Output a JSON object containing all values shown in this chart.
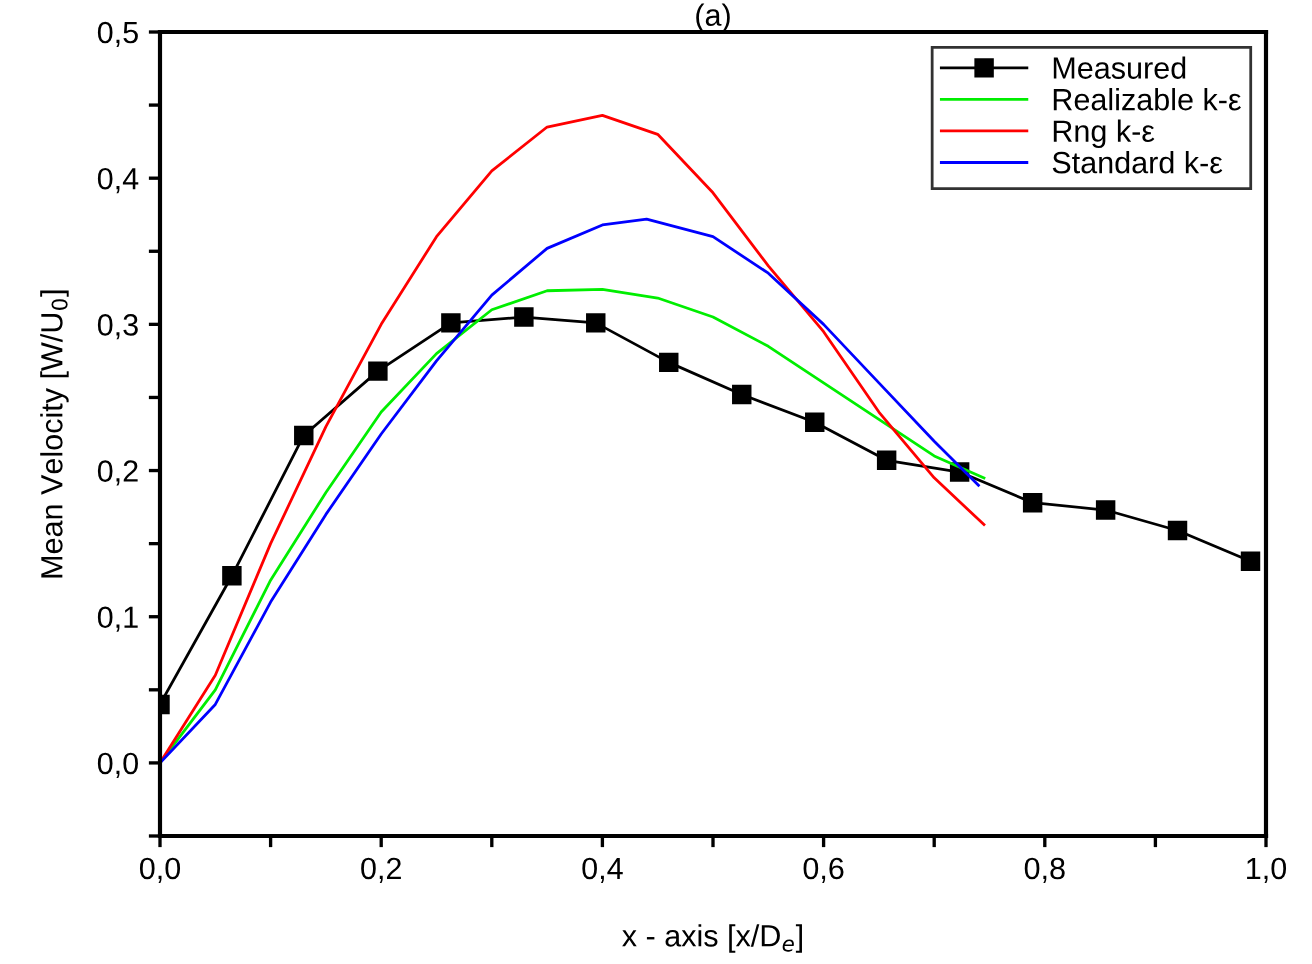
{
  "chart_data": {
    "type": "line",
    "title": "(a)",
    "xlabel": "x - axis [x/D$_{e}$]",
    "ylabel": "Mean Velocity [W/U$_{0}$]",
    "xlim": [
      0,
      1.0
    ],
    "ylim": [
      -0.05,
      0.5
    ],
    "xticks": [
      {
        "value": 0,
        "label": "0,0"
      },
      {
        "value": 0.1,
        "label": null
      },
      {
        "value": 0.2,
        "label": "0,2"
      },
      {
        "value": 0.3,
        "label": null
      },
      {
        "value": 0.4,
        "label": "0,4"
      },
      {
        "value": 0.5,
        "label": null
      },
      {
        "value": 0.6,
        "label": "0,6"
      },
      {
        "value": 0.7,
        "label": null
      },
      {
        "value": 0.8,
        "label": "0,8"
      },
      {
        "value": 0.9,
        "label": null
      },
      {
        "value": 1.0,
        "label": "1,0"
      }
    ],
    "yticks": [
      {
        "value": -0.05,
        "label": null
      },
      {
        "value": 0,
        "label": "0,0"
      },
      {
        "value": 0.05,
        "label": null
      },
      {
        "value": 0.1,
        "label": "0,1"
      },
      {
        "value": 0.15,
        "label": null
      },
      {
        "value": 0.2,
        "label": "0,2"
      },
      {
        "value": 0.25,
        "label": null
      },
      {
        "value": 0.3,
        "label": "0,3"
      },
      {
        "value": 0.35,
        "label": null
      },
      {
        "value": 0.4,
        "label": "0,4"
      },
      {
        "value": 0.45,
        "label": null
      },
      {
        "value": 0.5,
        "label": "0,5"
      }
    ],
    "grid": false,
    "legend": "top right",
    "line_style": "solid",
    "series": [
      {
        "name": "Measured",
        "color": "#000000",
        "marker": "square",
        "x": [
          0,
          0.065,
          0.13,
          0.197,
          0.263,
          0.329,
          0.394,
          0.46,
          0.526,
          0.592,
          0.657,
          0.723,
          0.789,
          0.855,
          0.92,
          0.986
        ],
        "values": [
          0.04,
          0.128,
          0.224,
          0.268,
          0.301,
          0.305,
          0.301,
          0.274,
          0.252,
          0.233,
          0.207,
          0.199,
          0.178,
          0.173,
          0.159,
          0.138
        ]
      },
      {
        "name": "Realizable k-ε",
        "color": "#00ee00",
        "marker": "none",
        "x": [
          0,
          0.05,
          0.1,
          0.15,
          0.2,
          0.25,
          0.3,
          0.35,
          0.4,
          0.45,
          0.5,
          0.55,
          0.6,
          0.65,
          0.7,
          0.745
        ],
        "values": [
          0,
          0.05,
          0.125,
          0.185,
          0.24,
          0.28,
          0.31,
          0.323,
          0.324,
          0.318,
          0.305,
          0.285,
          0.26,
          0.235,
          0.21,
          0.195
        ]
      },
      {
        "name": "Rng k-ε",
        "color": "#ff0000",
        "marker": "none",
        "x": [
          0,
          0.05,
          0.1,
          0.15,
          0.2,
          0.25,
          0.3,
          0.35,
          0.4,
          0.45,
          0.5,
          0.55,
          0.6,
          0.65,
          0.7,
          0.745
        ],
        "values": [
          0,
          0.06,
          0.15,
          0.23,
          0.3,
          0.36,
          0.405,
          0.435,
          0.443,
          0.43,
          0.39,
          0.34,
          0.295,
          0.24,
          0.195,
          0.163
        ]
      },
      {
        "name": "Standard k-ε",
        "color": "#0000ff",
        "marker": "none",
        "x": [
          0,
          0.05,
          0.1,
          0.15,
          0.2,
          0.25,
          0.3,
          0.35,
          0.4,
          0.44,
          0.5,
          0.55,
          0.6,
          0.65,
          0.7,
          0.74
        ],
        "values": [
          0,
          0.04,
          0.11,
          0.17,
          0.225,
          0.275,
          0.32,
          0.352,
          0.368,
          0.372,
          0.36,
          0.335,
          0.3,
          0.26,
          0.22,
          0.19
        ]
      }
    ]
  }
}
